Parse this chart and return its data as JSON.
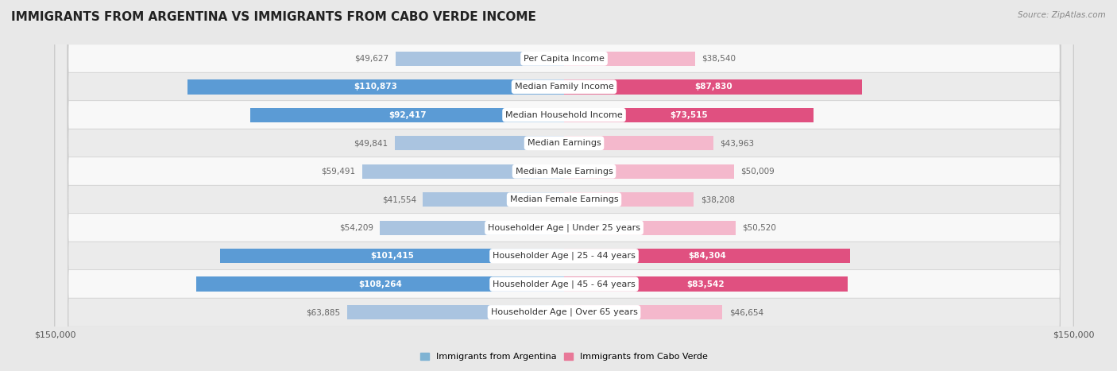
{
  "title": "IMMIGRANTS FROM ARGENTINA VS IMMIGRANTS FROM CABO VERDE INCOME",
  "source": "Source: ZipAtlas.com",
  "categories": [
    "Per Capita Income",
    "Median Family Income",
    "Median Household Income",
    "Median Earnings",
    "Median Male Earnings",
    "Median Female Earnings",
    "Householder Age | Under 25 years",
    "Householder Age | 25 - 44 years",
    "Householder Age | 45 - 64 years",
    "Householder Age | Over 65 years"
  ],
  "argentina_values": [
    49627,
    110873,
    92417,
    49841,
    59491,
    41554,
    54209,
    101415,
    108264,
    63885
  ],
  "caboverde_values": [
    38540,
    87830,
    73515,
    43963,
    50009,
    38208,
    50520,
    84304,
    83542,
    46654
  ],
  "argentina_labels": [
    "$49,627",
    "$110,873",
    "$92,417",
    "$49,841",
    "$59,491",
    "$41,554",
    "$54,209",
    "$101,415",
    "$108,264",
    "$63,885"
  ],
  "caboverde_labels": [
    "$38,540",
    "$87,830",
    "$73,515",
    "$43,963",
    "$50,009",
    "$38,208",
    "$50,520",
    "$84,304",
    "$83,542",
    "$46,654"
  ],
  "arg_light_color": "#aac4e0",
  "arg_dark_color": "#5b9bd5",
  "cv_light_color": "#f4b8cc",
  "cv_dark_color": "#e05080",
  "arg_legend_color": "#7fb3d3",
  "cv_legend_color": "#e87898",
  "xlim": 150000,
  "x_axis_label_left": "$150,000",
  "x_axis_label_right": "$150,000",
  "fig_bg": "#e8e8e8",
  "row_colors": [
    "#f8f8f8",
    "#ebebeb"
  ],
  "title_fontsize": 11,
  "source_fontsize": 7.5,
  "value_label_fontsize": 7.5,
  "category_fontsize": 8,
  "legend_fontsize": 8,
  "axis_label_fontsize": 8,
  "bar_height": 0.52,
  "threshold": 65000
}
